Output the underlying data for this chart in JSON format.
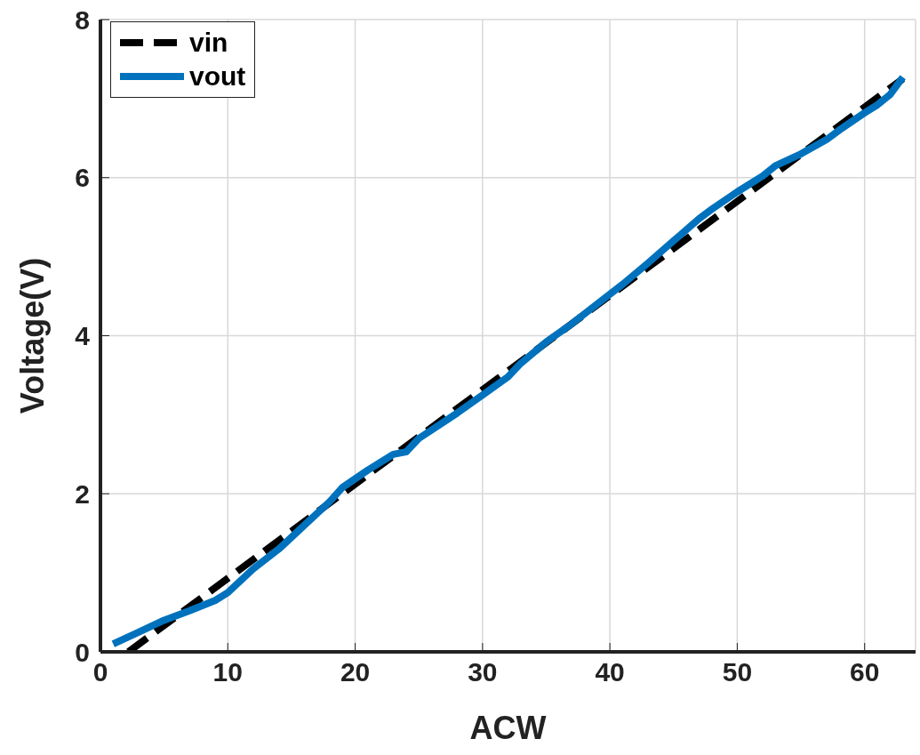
{
  "chart_data": {
    "type": "line",
    "xlabel": "ACW",
    "ylabel": "Voltage(V)",
    "xlim": [
      0,
      64
    ],
    "ylim": [
      0,
      8
    ],
    "xticks": [
      0,
      10,
      20,
      30,
      40,
      50,
      60
    ],
    "yticks": [
      0,
      2,
      4,
      6,
      8
    ],
    "grid": true,
    "legend": "top left",
    "series": [
      {
        "name": "vin",
        "color": "#000000",
        "line_style": "dashed",
        "x": [
          2.2,
          63
        ],
        "values": [
          0,
          7.25
        ]
      },
      {
        "name": "vout",
        "color": "#0072bd",
        "line_style": "solid",
        "x": [
          1,
          3,
          5,
          7,
          9,
          10,
          12,
          14,
          16,
          18,
          19,
          21,
          23,
          24,
          25,
          28,
          30,
          32,
          33,
          35,
          37,
          39,
          41,
          43,
          45,
          47,
          48,
          50,
          52,
          53,
          55,
          57,
          58,
          60,
          61,
          62,
          63
        ],
        "values": [
          0.1,
          0.25,
          0.4,
          0.52,
          0.65,
          0.75,
          1.05,
          1.3,
          1.6,
          1.9,
          2.08,
          2.3,
          2.5,
          2.53,
          2.7,
          3.02,
          3.25,
          3.48,
          3.65,
          3.92,
          4.15,
          4.4,
          4.65,
          4.92,
          5.2,
          5.48,
          5.6,
          5.82,
          6.02,
          6.15,
          6.3,
          6.48,
          6.6,
          6.82,
          6.92,
          7.05,
          7.27
        ]
      }
    ]
  }
}
